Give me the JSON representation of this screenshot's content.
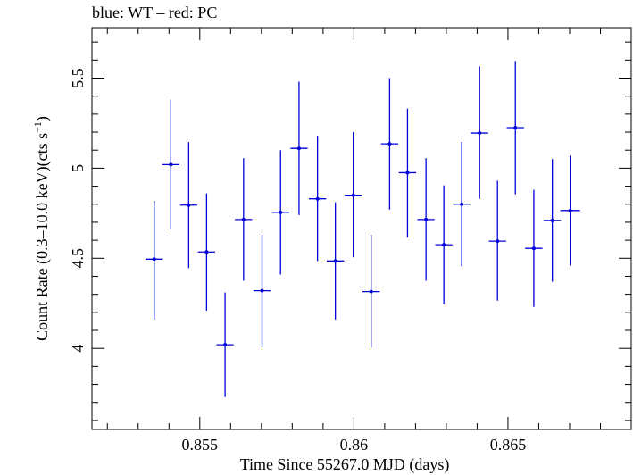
{
  "chart_data": {
    "type": "scatter",
    "title": "blue: WT – red: PC",
    "xlabel": "Time Since 55267.0 MJD (days)",
    "ylabel": "Count Rate (0.3–10.0 keV)(cts s",
    "ylabel_sup": "−1",
    "ylabel_end": ")",
    "xlim": [
      0.8515,
      0.869
    ],
    "ylim": [
      3.55,
      5.78
    ],
    "xticks": [
      {
        "v": 0.855,
        "label": "0.855"
      },
      {
        "v": 0.86,
        "label": "0.86"
      },
      {
        "v": 0.865,
        "label": "0.865"
      }
    ],
    "yticks": [
      {
        "v": 4,
        "label": "4"
      },
      {
        "v": 4.5,
        "label": "4.5"
      },
      {
        "v": 5,
        "label": "5"
      },
      {
        "v": 5.5,
        "label": "5.5"
      }
    ],
    "series": [
      {
        "color": "#0000dd",
        "points": [
          {
            "x": 0.85352,
            "xerr": 0.00028,
            "y": 4.495,
            "ylo": 4.16,
            "yhi": 4.82
          },
          {
            "x": 0.85406,
            "xerr": 0.00028,
            "y": 5.02,
            "ylo": 4.66,
            "yhi": 5.38
          },
          {
            "x": 0.85464,
            "xerr": 0.00028,
            "y": 4.795,
            "ylo": 4.445,
            "yhi": 5.145
          },
          {
            "x": 0.85522,
            "xerr": 0.00028,
            "y": 4.535,
            "ylo": 4.21,
            "yhi": 4.86
          },
          {
            "x": 0.85582,
            "xerr": 0.00028,
            "y": 4.02,
            "ylo": 3.73,
            "yhi": 4.31
          },
          {
            "x": 0.85642,
            "xerr": 0.00028,
            "y": 4.715,
            "ylo": 4.375,
            "yhi": 5.055
          },
          {
            "x": 0.85702,
            "xerr": 0.00028,
            "y": 4.32,
            "ylo": 4.005,
            "yhi": 4.63
          },
          {
            "x": 0.85762,
            "xerr": 0.00028,
            "y": 4.755,
            "ylo": 4.41,
            "yhi": 5.1
          },
          {
            "x": 0.85822,
            "xerr": 0.00028,
            "y": 5.11,
            "ylo": 4.74,
            "yhi": 5.48
          },
          {
            "x": 0.85882,
            "xerr": 0.00028,
            "y": 4.83,
            "ylo": 4.485,
            "yhi": 5.18
          },
          {
            "x": 0.8594,
            "xerr": 0.00028,
            "y": 4.485,
            "ylo": 4.16,
            "yhi": 4.81
          },
          {
            "x": 0.85998,
            "xerr": 0.00028,
            "y": 4.85,
            "ylo": 4.505,
            "yhi": 5.2
          },
          {
            "x": 0.86056,
            "xerr": 0.00028,
            "y": 4.315,
            "ylo": 4.005,
            "yhi": 4.63
          },
          {
            "x": 0.86116,
            "xerr": 0.00028,
            "y": 5.135,
            "ylo": 4.77,
            "yhi": 5.5
          },
          {
            "x": 0.86174,
            "xerr": 0.00028,
            "y": 4.975,
            "ylo": 4.615,
            "yhi": 5.33
          },
          {
            "x": 0.86234,
            "xerr": 0.00028,
            "y": 4.715,
            "ylo": 4.375,
            "yhi": 5.055
          },
          {
            "x": 0.86292,
            "xerr": 0.00028,
            "y": 4.575,
            "ylo": 4.245,
            "yhi": 4.905
          },
          {
            "x": 0.8635,
            "xerr": 0.00028,
            "y": 4.8,
            "ylo": 4.455,
            "yhi": 5.145
          },
          {
            "x": 0.86408,
            "xerr": 0.00028,
            "y": 5.195,
            "ylo": 4.83,
            "yhi": 5.565
          },
          {
            "x": 0.86466,
            "xerr": 0.00028,
            "y": 4.595,
            "ylo": 4.265,
            "yhi": 4.93
          },
          {
            "x": 0.86524,
            "xerr": 0.00028,
            "y": 5.225,
            "ylo": 4.855,
            "yhi": 5.595
          },
          {
            "x": 0.86584,
            "xerr": 0.00028,
            "y": 4.555,
            "ylo": 4.23,
            "yhi": 4.88
          },
          {
            "x": 0.86644,
            "xerr": 0.00028,
            "y": 4.71,
            "ylo": 4.37,
            "yhi": 5.05
          },
          {
            "x": 0.86702,
            "xerr": 0.00032,
            "y": 4.765,
            "ylo": 4.46,
            "yhi": 5.07
          }
        ]
      }
    ],
    "grid": false
  }
}
